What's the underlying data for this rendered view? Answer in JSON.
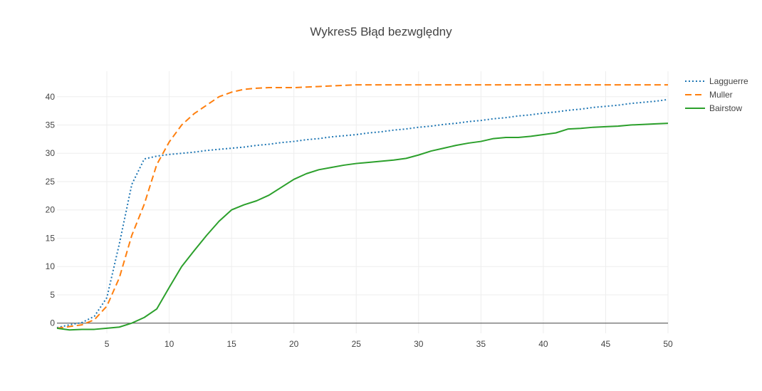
{
  "chart_data": {
    "type": "line",
    "title": "Wykres5 Błąd bezwględny",
    "xlabel": "",
    "ylabel": "",
    "xlim": [
      1,
      50
    ],
    "ylim": [
      -1.8,
      44.5
    ],
    "xticks": [
      5,
      10,
      15,
      20,
      25,
      30,
      35,
      40,
      45,
      50
    ],
    "yticks": [
      0,
      5,
      10,
      15,
      20,
      25,
      30,
      35,
      40
    ],
    "grid": true,
    "legend_position": "top-right",
    "series": [
      {
        "name": "Lagguerre",
        "color": "#1f77b4",
        "dash": "dotted",
        "x": [
          1,
          2,
          3,
          4,
          5,
          6,
          7,
          8,
          9,
          10,
          11,
          12,
          13,
          14,
          15,
          16,
          17,
          18,
          19,
          20,
          21,
          22,
          23,
          24,
          25,
          26,
          27,
          28,
          29,
          30,
          31,
          32,
          33,
          34,
          35,
          36,
          37,
          38,
          39,
          40,
          41,
          42,
          43,
          44,
          45,
          46,
          47,
          48,
          49,
          50
        ],
        "y": [
          -0.8,
          -0.3,
          0.1,
          1.2,
          4.5,
          14.0,
          24.5,
          29.0,
          29.5,
          29.8,
          30.0,
          30.2,
          30.5,
          30.7,
          30.9,
          31.1,
          31.4,
          31.6,
          31.9,
          32.1,
          32.4,
          32.6,
          32.9,
          33.1,
          33.3,
          33.6,
          33.8,
          34.1,
          34.3,
          34.6,
          34.8,
          35.1,
          35.3,
          35.6,
          35.8,
          36.1,
          36.3,
          36.6,
          36.8,
          37.1,
          37.3,
          37.6,
          37.8,
          38.1,
          38.3,
          38.5,
          38.8,
          39.0,
          39.2,
          39.5
        ]
      },
      {
        "name": "Muller",
        "color": "#ff7f0e",
        "dash": "dashed",
        "x": [
          1,
          2,
          3,
          4,
          5,
          6,
          7,
          8,
          9,
          10,
          11,
          12,
          13,
          14,
          15,
          16,
          17,
          18,
          19,
          20,
          21,
          22,
          23,
          24,
          25,
          26,
          27,
          28,
          29,
          30,
          31,
          32,
          33,
          34,
          35,
          36,
          37,
          38,
          39,
          40,
          41,
          42,
          43,
          44,
          45,
          46,
          47,
          48,
          49,
          50
        ],
        "y": [
          -0.9,
          -0.6,
          -0.3,
          0.6,
          3.0,
          8.0,
          15.5,
          21.0,
          28.0,
          32.0,
          35.0,
          37.0,
          38.5,
          40.0,
          40.8,
          41.3,
          41.5,
          41.6,
          41.6,
          41.6,
          41.7,
          41.8,
          41.9,
          42.0,
          42.1,
          42.1,
          42.1,
          42.1,
          42.1,
          42.1,
          42.1,
          42.1,
          42.1,
          42.1,
          42.1,
          42.1,
          42.1,
          42.1,
          42.1,
          42.1,
          42.1,
          42.1,
          42.1,
          42.1,
          42.1,
          42.1,
          42.1,
          42.1,
          42.1,
          42.1
        ]
      },
      {
        "name": "Bairstow",
        "color": "#2ca02c",
        "dash": "solid",
        "x": [
          1,
          2,
          3,
          4,
          5,
          6,
          7,
          8,
          9,
          10,
          11,
          12,
          13,
          14,
          15,
          16,
          17,
          18,
          19,
          20,
          21,
          22,
          23,
          24,
          25,
          26,
          27,
          28,
          29,
          30,
          31,
          32,
          33,
          34,
          35,
          36,
          37,
          38,
          39,
          40,
          41,
          42,
          43,
          44,
          45,
          46,
          47,
          48,
          49,
          50
        ],
        "y": [
          -0.9,
          -1.2,
          -1.1,
          -1.1,
          -0.9,
          -0.7,
          0.0,
          1.0,
          2.5,
          6.3,
          10.0,
          12.8,
          15.5,
          18.0,
          20.0,
          20.9,
          21.6,
          22.6,
          24.0,
          25.4,
          26.4,
          27.1,
          27.5,
          27.9,
          28.2,
          28.4,
          28.6,
          28.8,
          29.1,
          29.7,
          30.4,
          30.9,
          31.4,
          31.8,
          32.1,
          32.6,
          32.8,
          32.8,
          33.0,
          33.3,
          33.6,
          34.3,
          34.4,
          34.6,
          34.7,
          34.8,
          35.0,
          35.1,
          35.2,
          35.3
        ]
      }
    ]
  }
}
